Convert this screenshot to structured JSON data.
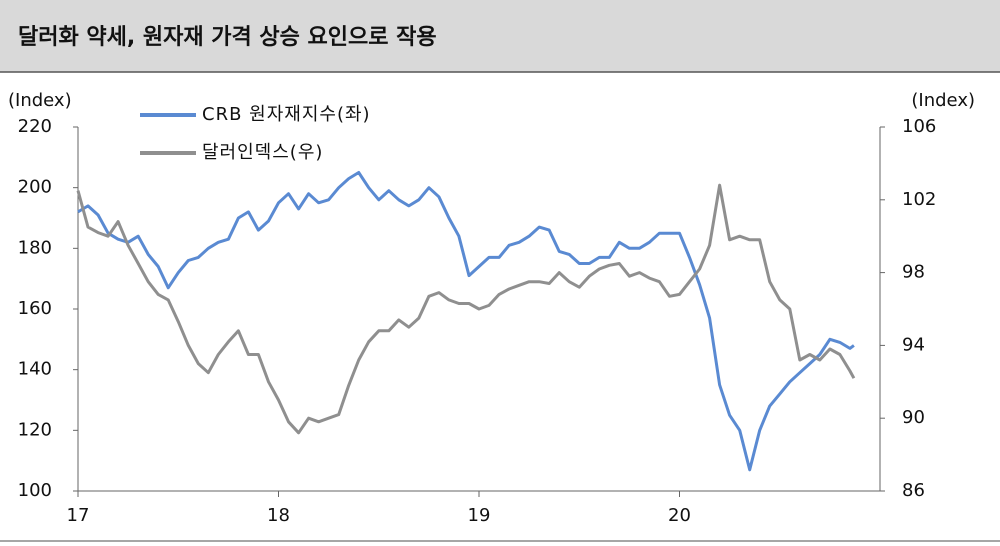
{
  "chart_data": {
    "type": "line",
    "title": "달러화 약세, 원자재 가격 상승 요인으로 작용",
    "y_label": "(Index)",
    "y2_label": "(Index)",
    "x": [
      17,
      17.05,
      17.1,
      17.15,
      17.2,
      17.25,
      17.3,
      17.35,
      17.4,
      17.45,
      17.5,
      17.55,
      17.6,
      17.65,
      17.7,
      17.75,
      17.8,
      17.85,
      17.9,
      17.95,
      18,
      18.05,
      18.1,
      18.15,
      18.2,
      18.25,
      18.3,
      18.35,
      18.4,
      18.45,
      18.5,
      18.55,
      18.6,
      18.65,
      18.7,
      18.75,
      18.8,
      18.85,
      18.9,
      18.95,
      19,
      19.05,
      19.1,
      19.15,
      19.2,
      19.25,
      19.3,
      19.35,
      19.4,
      19.45,
      19.5,
      19.55,
      19.6,
      19.65,
      19.7,
      19.75,
      19.8,
      19.85,
      19.9,
      19.95,
      20,
      20.05,
      20.1,
      20.15,
      20.2,
      20.25,
      20.3,
      20.35,
      20.4,
      20.45,
      20.5,
      20.55,
      20.6,
      20.65,
      20.7,
      20.75,
      20.8,
      20.85,
      20.87
    ],
    "series": [
      {
        "name": "CRB 원자재지수(좌)",
        "color": "#5a8ad2",
        "axis": "y",
        "values": [
          192,
          194,
          191,
          185,
          183,
          182,
          184,
          178,
          174,
          167,
          172,
          176,
          177,
          180,
          182,
          183,
          190,
          192,
          186,
          189,
          195,
          198,
          193,
          198,
          195,
          196,
          200,
          203,
          205,
          200,
          196,
          199,
          196,
          194,
          196,
          200,
          197,
          190,
          184,
          171,
          174,
          177,
          177,
          181,
          182,
          184,
          187,
          186,
          179,
          178,
          175,
          175,
          177,
          177,
          182,
          180,
          180,
          182,
          185,
          185,
          185,
          177,
          168,
          157,
          135,
          125,
          120,
          107,
          120,
          128,
          132,
          136,
          139,
          142,
          145,
          150,
          149,
          147,
          148
        ]
      },
      {
        "name": "달러인덱스(우)",
        "color": "#8f8f8f",
        "axis": "y2",
        "values": [
          102.5,
          100.5,
          100.2,
          100.0,
          100.8,
          99.5,
          98.5,
          97.5,
          96.8,
          96.5,
          95.3,
          94.0,
          93.0,
          92.5,
          93.5,
          94.2,
          94.8,
          93.5,
          93.5,
          92.0,
          91.0,
          89.8,
          89.2,
          90.0,
          89.8,
          90.0,
          90.2,
          91.8,
          93.2,
          94.2,
          94.8,
          94.8,
          95.4,
          95.0,
          95.5,
          96.7,
          96.9,
          96.5,
          96.3,
          96.3,
          96.0,
          96.2,
          96.8,
          97.1,
          97.3,
          97.5,
          97.5,
          97.4,
          98.0,
          97.5,
          97.2,
          97.8,
          98.2,
          98.4,
          98.5,
          97.8,
          98.0,
          97.7,
          97.5,
          96.7,
          96.8,
          97.5,
          98.2,
          99.5,
          102.8,
          99.8,
          100.0,
          99.8,
          99.8,
          97.5,
          96.5,
          96.0,
          93.2,
          93.5,
          93.2,
          93.8,
          93.5,
          92.6,
          92.2
        ]
      }
    ],
    "xlim": [
      17,
      21
    ],
    "xticks": [
      17,
      18,
      19,
      20
    ],
    "ylim": [
      100,
      220
    ],
    "yticks": [
      100,
      120,
      140,
      160,
      180,
      200,
      220
    ],
    "y2lim": [
      86,
      106
    ],
    "y2ticks": [
      86,
      90,
      94,
      98,
      102,
      106
    ],
    "grid": false,
    "legend": "upper-left"
  }
}
